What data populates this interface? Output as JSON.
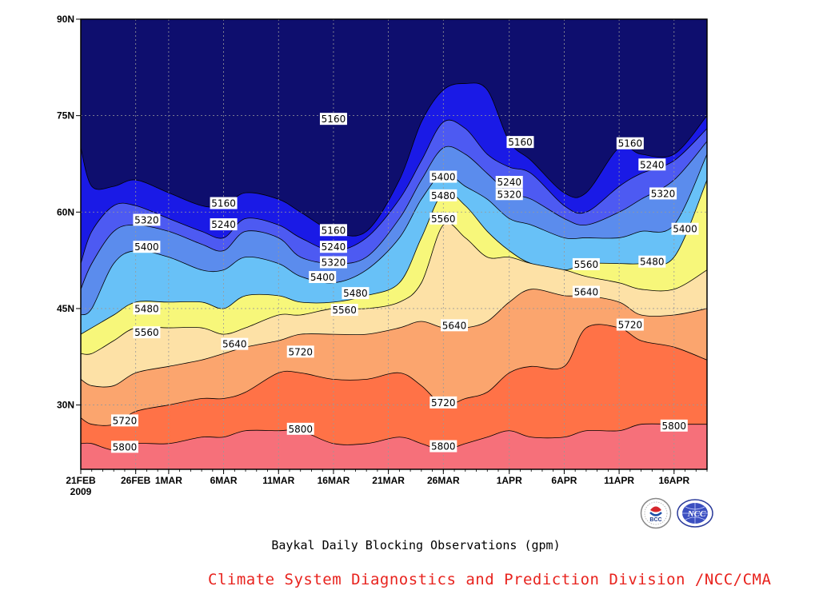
{
  "chart_data": {
    "type": "filled-contour",
    "title": "Baykal Daily Blocking Observations (gpm)",
    "x_ticks": [
      {
        "date": "2009-02-21",
        "label": "21FEB"
      },
      {
        "date": "2009-02-26",
        "label": "26FEB"
      },
      {
        "date": "2009-03-01",
        "label": "1MAR"
      },
      {
        "date": "2009-03-06",
        "label": "6MAR"
      },
      {
        "date": "2009-03-11",
        "label": "11MAR"
      },
      {
        "date": "2009-03-16",
        "label": "16MAR"
      },
      {
        "date": "2009-03-21",
        "label": "21MAR"
      },
      {
        "date": "2009-03-26",
        "label": "26MAR"
      },
      {
        "date": "2009-04-01",
        "label": "1APR"
      },
      {
        "date": "2009-04-06",
        "label": "6APR"
      },
      {
        "date": "2009-04-11",
        "label": "11APR"
      },
      {
        "date": "2009-04-16",
        "label": "16APR"
      }
    ],
    "x_year_label": "2009",
    "x_range": [
      "2009-02-21",
      "2009-04-19"
    ],
    "y_ticks": [
      {
        "value": 30,
        "label": "30N"
      },
      {
        "value": 45,
        "label": "45N"
      },
      {
        "value": 60,
        "label": "60N"
      },
      {
        "value": 75,
        "label": "75N"
      },
      {
        "value": 90,
        "label": "90N"
      }
    ],
    "y_range": [
      20,
      90
    ],
    "grid": true,
    "sample_dates": [
      "2009-02-21",
      "2009-02-22",
      "2009-02-24",
      "2009-02-26",
      "2009-03-01",
      "2009-03-04",
      "2009-03-06",
      "2009-03-08",
      "2009-03-11",
      "2009-03-13",
      "2009-03-16",
      "2009-03-19",
      "2009-03-22",
      "2009-03-24",
      "2009-03-26",
      "2009-03-28",
      "2009-03-30",
      "2009-04-01",
      "2009-04-03",
      "2009-04-06",
      "2009-04-08",
      "2009-04-11",
      "2009-04-13",
      "2009-04-16",
      "2009-04-19"
    ],
    "levels": [
      {
        "value": 5160,
        "color": "#1a1ae6",
        "lat": [
          70,
          64,
          64,
          65,
          63,
          61,
          61,
          63,
          62,
          60,
          57,
          57,
          65,
          74,
          79,
          80,
          79,
          71,
          68,
          63,
          63,
          70,
          69,
          69,
          75
        ]
      },
      {
        "value": 5240,
        "color": "#4d5af2",
        "lat": [
          52,
          57,
          61,
          61,
          59,
          57,
          56,
          59,
          58,
          56,
          54,
          56,
          62,
          68,
          74,
          73,
          69,
          67,
          66,
          61,
          60,
          64,
          66,
          68,
          73
        ]
      },
      {
        "value": 5320,
        "color": "#5b8ced",
        "lat": [
          48,
          52,
          57,
          58,
          57,
          55,
          54,
          57,
          56,
          53,
          52,
          53,
          59,
          65,
          70,
          69,
          66,
          63,
          62,
          59,
          58,
          60,
          62,
          65,
          71
        ]
      },
      {
        "value": 5400,
        "color": "#68c1f7",
        "lat": [
          44,
          45,
          52,
          54,
          53,
          51,
          51,
          53,
          52,
          50,
          49,
          51,
          56,
          62,
          66,
          64,
          62,
          59,
          58,
          56,
          56,
          56,
          57,
          58,
          69
        ]
      },
      {
        "value": 5480,
        "color": "#f7f77a",
        "lat": [
          41,
          42,
          44,
          46,
          46,
          46,
          45,
          47,
          47,
          46,
          46,
          47,
          49,
          56,
          63,
          61,
          57,
          54,
          52,
          51,
          52,
          52,
          52,
          53,
          65
        ]
      },
      {
        "value": 5560,
        "color": "#fde1a6",
        "lat": [
          38,
          38,
          40,
          42,
          42,
          42,
          41,
          42,
          44,
          44,
          45,
          45,
          46,
          49,
          58,
          56,
          53,
          53,
          52,
          51,
          50,
          49,
          48,
          48,
          51
        ]
      },
      {
        "value": 5640,
        "color": "#fba56e",
        "lat": [
          34,
          33,
          33,
          35,
          36,
          37,
          38,
          39,
          40,
          41,
          41,
          41,
          42,
          43,
          42,
          42,
          43,
          46,
          48,
          47,
          47,
          46,
          44,
          44,
          45
        ]
      },
      {
        "value": 5720,
        "color": "#ff7247",
        "lat": [
          28,
          27,
          27,
          29,
          30,
          31,
          31,
          32,
          35,
          35,
          34,
          34,
          35,
          33,
          30,
          31,
          32,
          35,
          36,
          36,
          42,
          42,
          40,
          39,
          37
        ]
      },
      {
        "value": 5800,
        "color": "#f6707a",
        "lat": [
          24,
          24,
          23,
          24,
          24,
          25,
          25,
          26,
          26,
          26,
          24,
          24,
          25,
          24,
          23,
          24,
          25,
          26,
          25,
          25,
          26,
          26,
          27,
          27,
          27
        ]
      }
    ],
    "background_color": "#0e0e6e",
    "contour_labels": [
      {
        "text": "5160",
        "date": "2009-03-16",
        "lat": 74.5
      },
      {
        "text": "5160",
        "date": "2009-03-06",
        "lat": 61.4
      },
      {
        "text": "5160",
        "date": "2009-03-16",
        "lat": 57.2
      },
      {
        "text": "5160",
        "date": "2009-04-02",
        "lat": 70.9
      },
      {
        "text": "5160",
        "date": "2009-04-12",
        "lat": 70.7
      },
      {
        "text": "5240",
        "date": "2009-03-06",
        "lat": 58.1
      },
      {
        "text": "5240",
        "date": "2009-03-16",
        "lat": 54.6
      },
      {
        "text": "5240",
        "date": "2009-04-01",
        "lat": 64.7
      },
      {
        "text": "5240",
        "date": "2009-04-14",
        "lat": 67.4
      },
      {
        "text": "5320",
        "date": "2009-02-27",
        "lat": 58.8
      },
      {
        "text": "5320",
        "date": "2009-03-16",
        "lat": 52.2
      },
      {
        "text": "5320",
        "date": "2009-04-01",
        "lat": 62.8
      },
      {
        "text": "5320",
        "date": "2009-04-15",
        "lat": 62.9
      },
      {
        "text": "5400",
        "date": "2009-02-27",
        "lat": 54.6
      },
      {
        "text": "5400",
        "date": "2009-03-15",
        "lat": 49.9
      },
      {
        "text": "5400",
        "date": "2009-03-26",
        "lat": 65.5
      },
      {
        "text": "5400",
        "date": "2009-04-17",
        "lat": 57.4
      },
      {
        "text": "5480",
        "date": "2009-02-27",
        "lat": 45.0
      },
      {
        "text": "5480",
        "date": "2009-03-18",
        "lat": 47.4
      },
      {
        "text": "5480",
        "date": "2009-03-26",
        "lat": 62.6
      },
      {
        "text": "5480",
        "date": "2009-04-14",
        "lat": 52.3
      },
      {
        "text": "5560",
        "date": "2009-02-27",
        "lat": 41.3
      },
      {
        "text": "5560",
        "date": "2009-03-17",
        "lat": 44.8
      },
      {
        "text": "5560",
        "date": "2009-03-26",
        "lat": 59.0
      },
      {
        "text": "5560",
        "date": "2009-04-08",
        "lat": 51.9
      },
      {
        "text": "5640",
        "date": "2009-03-07",
        "lat": 39.5
      },
      {
        "text": "5640",
        "date": "2009-03-27",
        "lat": 42.4
      },
      {
        "text": "5640",
        "date": "2009-04-08",
        "lat": 47.6
      },
      {
        "text": "5720",
        "date": "2009-02-25",
        "lat": 27.6
      },
      {
        "text": "5720",
        "date": "2009-03-13",
        "lat": 38.3
      },
      {
        "text": "5720",
        "date": "2009-03-26",
        "lat": 30.4
      },
      {
        "text": "5720",
        "date": "2009-04-12",
        "lat": 42.5
      },
      {
        "text": "5800",
        "date": "2009-02-25",
        "lat": 23.5
      },
      {
        "text": "5800",
        "date": "2009-03-13",
        "lat": 26.3
      },
      {
        "text": "5800",
        "date": "2009-03-26",
        "lat": 23.6
      },
      {
        "text": "5800",
        "date": "2009-04-16",
        "lat": 26.8
      }
    ]
  },
  "caption": "Baykal Daily Blocking Observations (gpm)",
  "organization": "Climate System Diagnostics and Prediction Division /NCC/CMA",
  "logos": {
    "bcc": {
      "icon": "bcc-logo-icon",
      "text": "BCC"
    },
    "ncc": {
      "icon": "ncc-logo-icon",
      "text": "NCC"
    }
  }
}
